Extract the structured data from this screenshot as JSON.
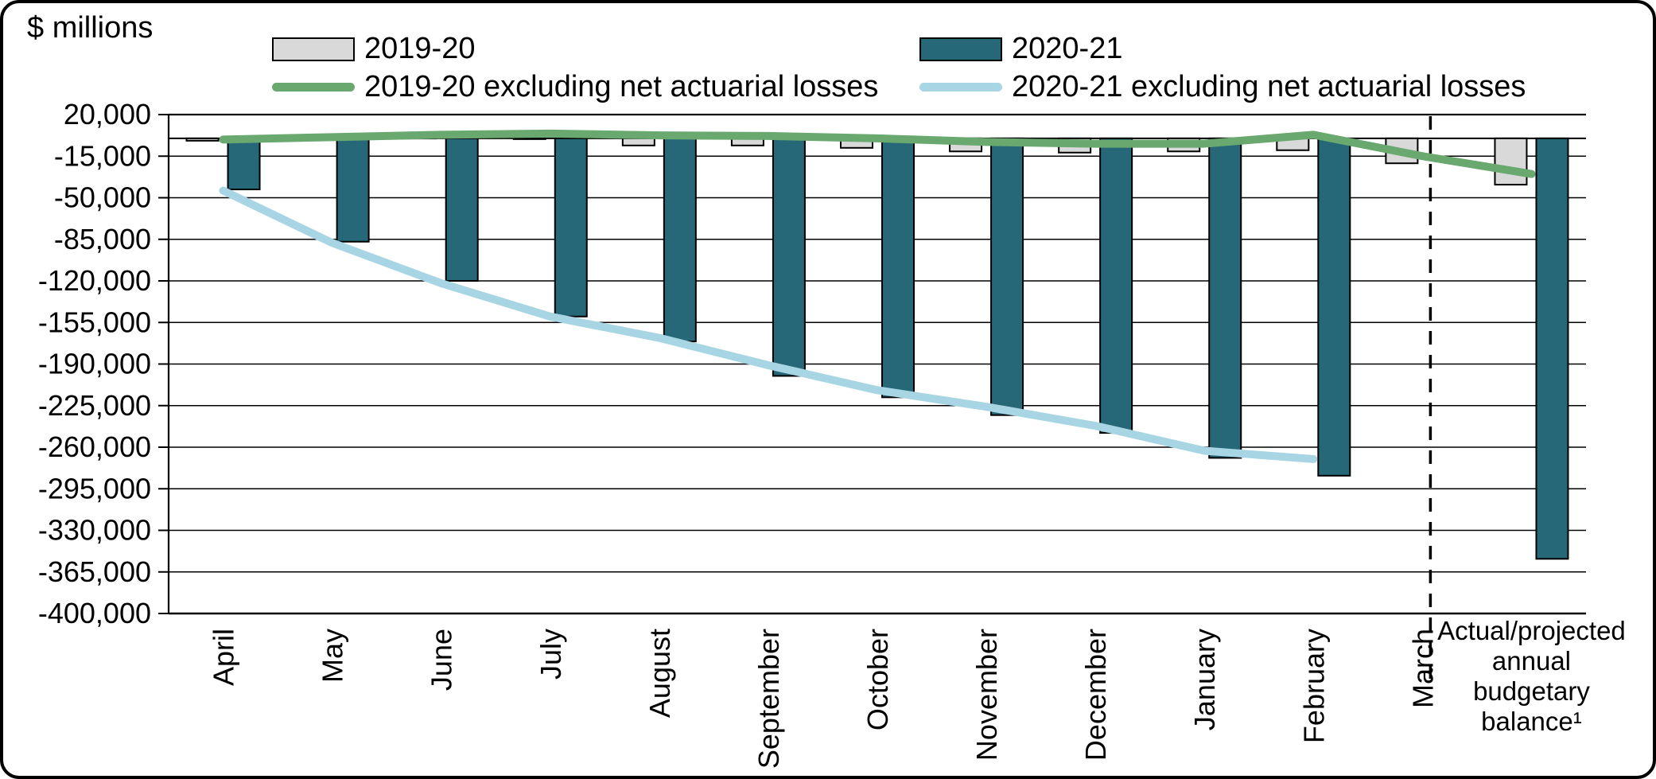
{
  "title": "$ millions",
  "legend": [
    {
      "label": "2019-20",
      "type": "bar",
      "color": "#d9d9d9"
    },
    {
      "label": "2020-21",
      "type": "bar",
      "color": "#266877"
    },
    {
      "label": "2019-20 excluding net actuarial losses",
      "type": "line",
      "color": "#69a86e"
    },
    {
      "label": "2020-21 excluding net actuarial losses",
      "type": "line",
      "color": "#a8d5e3"
    }
  ],
  "chart_data": {
    "type": "bar",
    "title": "$ millions",
    "categories": [
      "April",
      "May",
      "June",
      "July",
      "August",
      "September",
      "October",
      "November",
      "December",
      "January",
      "February",
      "March",
      "Actual/projected annual budgetary balance¹"
    ],
    "annual_label_lines": [
      "Actual/projected",
      "annual",
      "budgetary",
      "balance¹"
    ],
    "series": [
      {
        "name": "2019-20",
        "type": "bar",
        "color": "#d9d9d9",
        "values": [
          -2000,
          -1000,
          500,
          -500,
          -6000,
          -6000,
          -8000,
          -11000,
          -12000,
          -11000,
          -10000,
          -21000,
          -39000
        ]
      },
      {
        "name": "2020-21",
        "type": "bar",
        "color": "#266877",
        "values": [
          -43000,
          -87000,
          -120000,
          -150000,
          -171000,
          -200000,
          -218000,
          -233000,
          -248000,
          -269000,
          -284000,
          null,
          -354000
        ]
      },
      {
        "name": "2019-20 excluding net actuarial losses",
        "type": "line",
        "color": "#69a86e",
        "values": [
          -1000,
          1000,
          3000,
          4000,
          2500,
          2000,
          0,
          -3000,
          -4500,
          -4500,
          3000,
          -15000,
          -30000
        ]
      },
      {
        "name": "2020-21 excluding net actuarial losses",
        "type": "line",
        "color": "#a8d5e3",
        "values": [
          -44000,
          -88000,
          -122000,
          -150000,
          -168000,
          -191000,
          -212000,
          -226000,
          -242000,
          -263000,
          -270000,
          null,
          null
        ]
      }
    ],
    "ylabel": "$ millions",
    "xlabel": "",
    "ylim": [
      -400000,
      20000
    ],
    "ytick_step": 35000,
    "y_ticks": [
      "20,000",
      "-15,000",
      "-50,000",
      "-85,000",
      "-120,000",
      "-155,000",
      "-190,000",
      "-225,000",
      "-260,000",
      "-295,000",
      "-330,000",
      "-365,000",
      "-400,000"
    ],
    "grid": "horizontal",
    "legend_position": "top",
    "dashed_divider_category": "March",
    "colors": {
      "bar_2019_20": "#d9d9d9",
      "bar_2020_21": "#266877",
      "line_2019_20_excl": "#69a86e",
      "line_2020_21_excl": "#a8d5e3",
      "grid": "#000000",
      "axis": "#000000"
    }
  }
}
